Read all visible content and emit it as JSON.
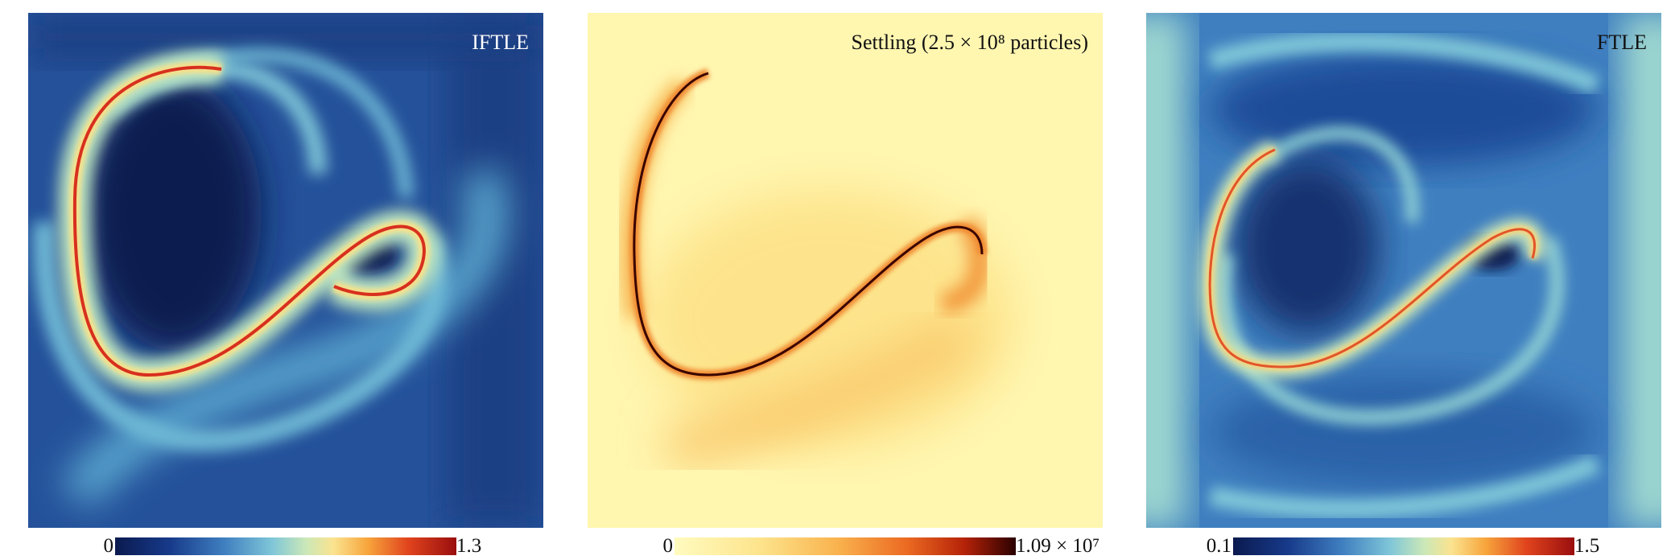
{
  "panels": [
    {
      "title": "IFTLE",
      "colorbar": {
        "min_label": "0",
        "max_label": "1.3"
      },
      "palette": {
        "low": "#0b1a4f",
        "mid": "#7fc6d8",
        "high": "#d7301f"
      }
    },
    {
      "title": "Settling (2.5 × 10⁸ particles)",
      "colorbar": {
        "min_label": "0",
        "max_label": "1.09 × 10⁷"
      },
      "palette": {
        "low": "#fffbbf",
        "mid": "#f9b24d",
        "high": "#2a0000"
      }
    },
    {
      "title": "FTLE",
      "colorbar": {
        "min_label": "0.1",
        "max_label": "1.5"
      },
      "palette": {
        "low": "#0b1a4f",
        "mid": "#7fc6d8",
        "high": "#d7301f"
      }
    }
  ]
}
